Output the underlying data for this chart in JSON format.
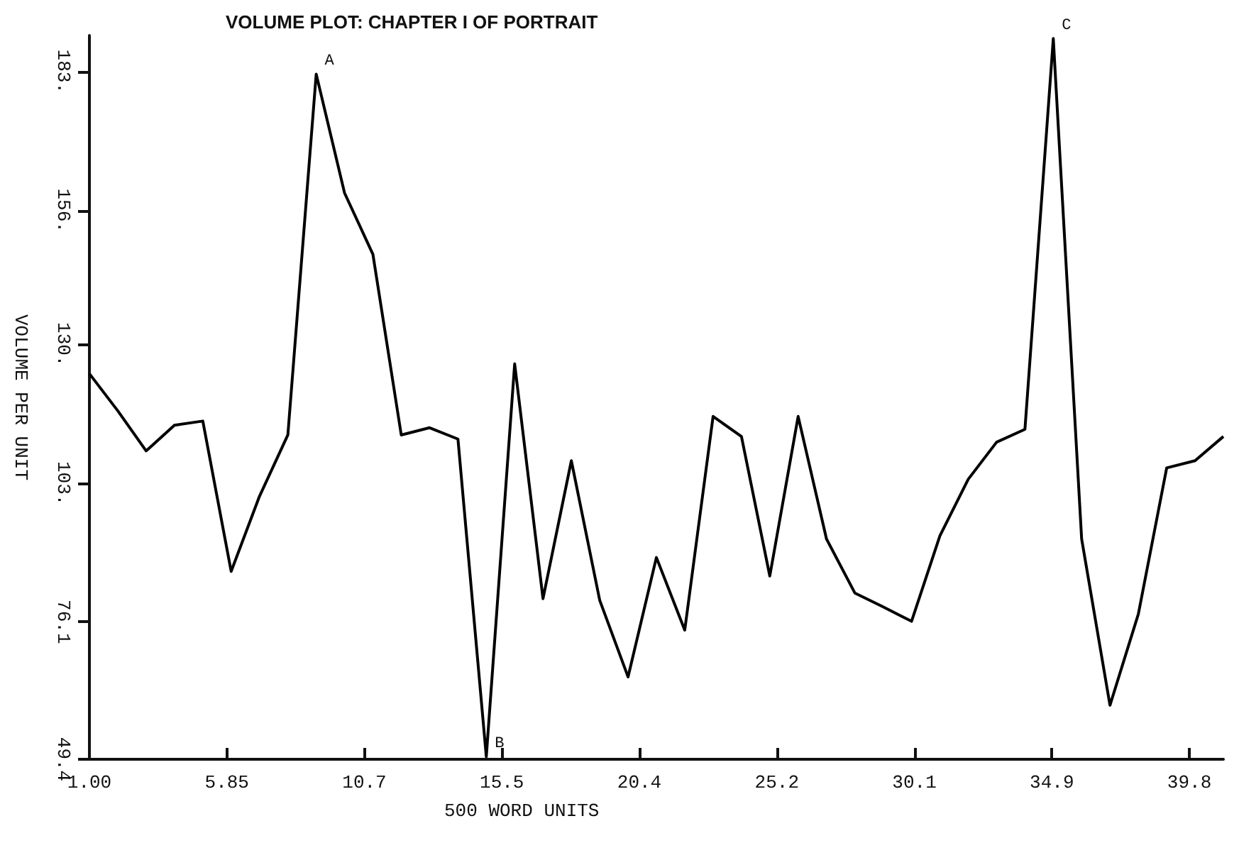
{
  "chart_data": {
    "type": "line",
    "title": "VOLUME PLOT: CHAPTER I OF PORTRAIT",
    "xlabel": "500 WORD UNITS",
    "ylabel": "VOLUME PER UNIT",
    "x": [
      1,
      2,
      3,
      4,
      5,
      6,
      7,
      8,
      9,
      10,
      11,
      12,
      13,
      14,
      15,
      16,
      17,
      18,
      19,
      20,
      21,
      22,
      23,
      24,
      25,
      26,
      27,
      28,
      29,
      30,
      31,
      32,
      33,
      34,
      35,
      36,
      37,
      38,
      39,
      40,
      41
    ],
    "series": [
      {
        "color": "#000000",
        "values": [
          124.3,
          117.1,
          109.3,
          114.3,
          115.1,
          85.9,
          100.5,
          112.4,
          182.5,
          159.4,
          147.5,
          112.4,
          113.8,
          111.6,
          49.9,
          126.2,
          80.6,
          107.4,
          80.3,
          65.4,
          88.6,
          74.5,
          116.0,
          112.1,
          85.0,
          116.0,
          92.2,
          81.7,
          79.0,
          76.2,
          92.8,
          103.8,
          111.0,
          113.5,
          189.4,
          92.2,
          59.9,
          77.6,
          106.0,
          107.4,
          112.1
        ]
      }
    ],
    "xlim": [
      1,
      41
    ],
    "ylim": [
      49.4,
      190
    ],
    "xticks": [
      {
        "value": 1,
        "label": "1.00"
      },
      {
        "value": 5.85,
        "label": "5.85"
      },
      {
        "value": 10.7,
        "label": "10.7"
      },
      {
        "value": 15.55,
        "label": "15.5"
      },
      {
        "value": 20.4,
        "label": "20.4"
      },
      {
        "value": 25.25,
        "label": "25.2"
      },
      {
        "value": 30.1,
        "label": "30.1"
      },
      {
        "value": 34.95,
        "label": "34.9"
      },
      {
        "value": 39.8,
        "label": "39.8"
      }
    ],
    "yticks": [
      {
        "value": 49.4,
        "label": "49.4"
      },
      {
        "value": 76.1,
        "label": "76.1"
      },
      {
        "value": 103,
        "label": "103."
      },
      {
        "value": 130,
        "label": "130."
      },
      {
        "value": 156,
        "label": "156."
      },
      {
        "value": 183,
        "label": "183."
      }
    ],
    "annotations": [
      {
        "text": "A",
        "x": 9,
        "y": 182.5
      },
      {
        "text": "B",
        "x": 15,
        "y": 49.9
      },
      {
        "text": "C",
        "x": 35,
        "y": 189.4
      }
    ],
    "grid": false,
    "marker": "none",
    "line_style": "solid"
  }
}
